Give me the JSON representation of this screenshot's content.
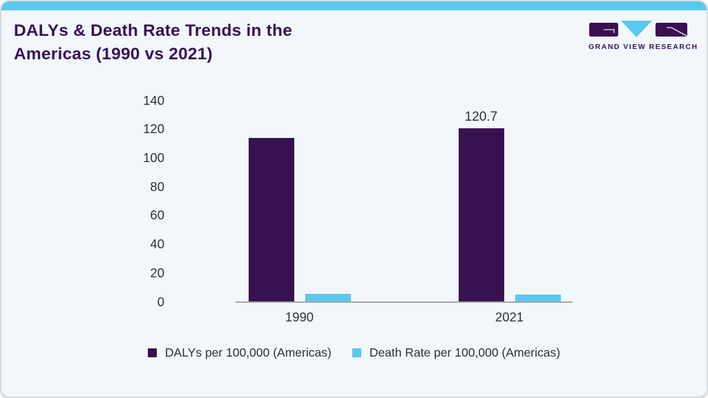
{
  "header": {
    "title": "DALYs & Death Rate Trends in the Americas (1990 vs 2021)",
    "title_line1": "DALYs & Death Rate Trends in the",
    "title_line2": "Americas (1990 vs 2021)"
  },
  "logo": {
    "brand": "GRAND VIEW RESEARCH",
    "icon": "gvr-logo-icon"
  },
  "colors": {
    "accent_strip": "#5bc8f0",
    "daly_bar": "#3a1150",
    "death_bar": "#5bc8f0",
    "title_text": "#371257",
    "axis_text": "#2f3038",
    "axis_line": "#a6a6a6",
    "card_background": "#f2f7fb"
  },
  "chart_data": {
    "type": "bar",
    "title": "DALYs & Death Rate Trends in the Americas (1990 vs 2021)",
    "categories": [
      "1990",
      "2021"
    ],
    "series": [
      {
        "name": "DALYs per 100,000 (Americas)",
        "color": "#3a1150",
        "values": [
          114,
          120.7
        ],
        "data_labels": [
          "",
          "120.7"
        ]
      },
      {
        "name": "Death Rate per 100,000 (Americas)",
        "color": "#5bc8f0",
        "values": [
          5.5,
          5
        ],
        "data_labels": [
          "",
          ""
        ]
      }
    ],
    "yticks": [
      0,
      20,
      40,
      60,
      80,
      100,
      120,
      140
    ],
    "ylim": [
      0,
      140
    ],
    "grid": false,
    "legend_position": "bottom"
  }
}
